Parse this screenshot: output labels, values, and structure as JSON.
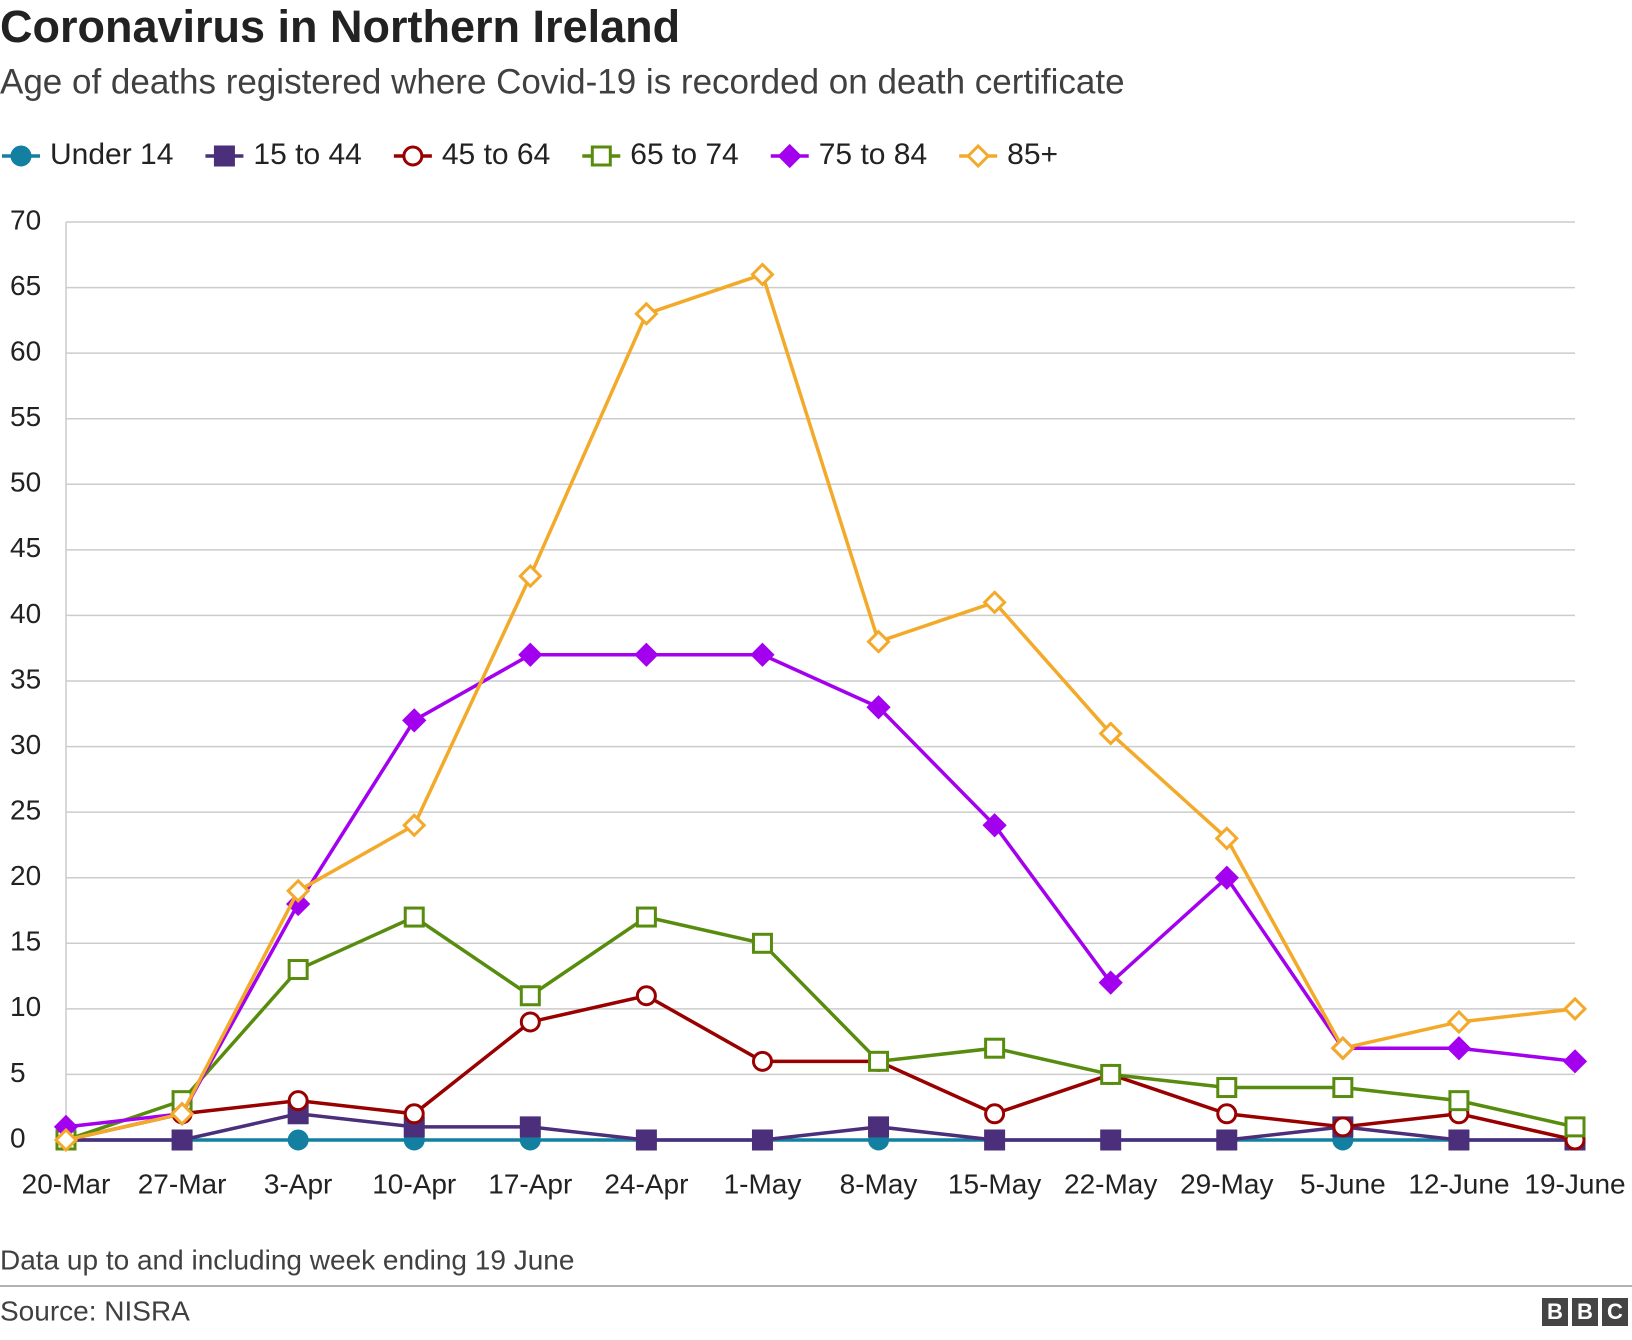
{
  "chart_data": {
    "type": "line",
    "title": "Coronavirus in Northern Ireland",
    "subtitle": "Age of deaths registered where Covid-19 is recorded on death certificate",
    "categories": [
      "20-Mar",
      "27-Mar",
      "3-Apr",
      "10-Apr",
      "17-Apr",
      "24-Apr",
      "1-May",
      "8-May",
      "15-May",
      "22-May",
      "29-May",
      "5-June",
      "12-June",
      "19-June"
    ],
    "series": [
      {
        "name": "Under 14",
        "color": "#1380a1",
        "marker": "circle",
        "filled": true,
        "values": [
          0,
          0,
          0,
          0,
          0,
          0,
          0,
          0,
          0,
          0,
          0,
          0,
          0,
          0
        ]
      },
      {
        "name": "15 to 44",
        "color": "#4b2f7a",
        "marker": "square",
        "filled": true,
        "values": [
          0,
          0,
          2,
          1,
          1,
          0,
          0,
          1,
          0,
          0,
          0,
          1,
          0,
          0
        ]
      },
      {
        "name": "45 to 64",
        "color": "#990000",
        "marker": "circle",
        "filled": false,
        "values": [
          0,
          2,
          3,
          2,
          9,
          11,
          6,
          6,
          2,
          5,
          2,
          1,
          2,
          0
        ]
      },
      {
        "name": "65 to 74",
        "color": "#588c0e",
        "marker": "square",
        "filled": false,
        "values": [
          0,
          3,
          13,
          17,
          11,
          17,
          15,
          6,
          7,
          5,
          4,
          4,
          3,
          1
        ]
      },
      {
        "name": "75 to 84",
        "color": "#a300ef",
        "marker": "diamond",
        "filled": true,
        "values": [
          1,
          2,
          18,
          32,
          37,
          37,
          37,
          33,
          24,
          12,
          20,
          7,
          7,
          6
        ]
      },
      {
        "name": "85+",
        "color": "#f3aa2a",
        "marker": "diamond",
        "filled": false,
        "values": [
          0,
          2,
          19,
          24,
          43,
          63,
          66,
          38,
          41,
          31,
          23,
          7,
          9,
          10
        ]
      }
    ],
    "ylim": [
      0,
      70
    ],
    "yticks": [
      0,
      5,
      10,
      15,
      20,
      25,
      30,
      35,
      40,
      45,
      50,
      55,
      60,
      65,
      70
    ],
    "grid": true,
    "note": "Data up to and including week ending 19 June",
    "source": "Source: NISRA"
  }
}
